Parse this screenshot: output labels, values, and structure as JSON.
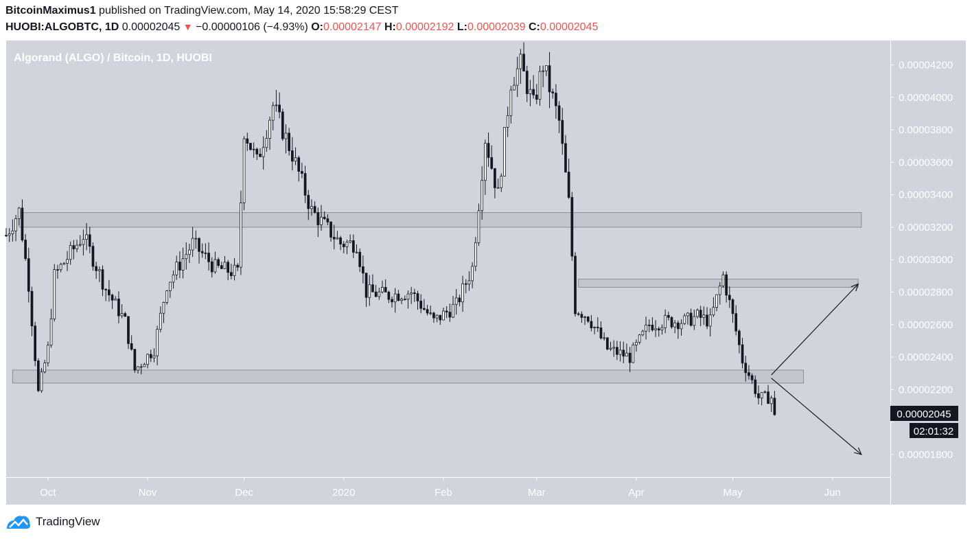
{
  "header": {
    "author": "BitcoinMaximus1",
    "published_text": "published on TradingView.com, May 14, 2020 15:58:29 CEST",
    "symbol": "HUOBI:ALGOBTC, 1D",
    "last_price": "0.00002045",
    "change_arrow": "▼",
    "change": "−0.00000106 (−4.93%)",
    "open_label": "O:",
    "open": "0.00002147",
    "high_label": "H:",
    "high": "0.00002192",
    "low_label": "L:",
    "low": "0.00002039",
    "close_label": "C:",
    "close": "0.00002045"
  },
  "footer": {
    "brand": "TradingView",
    "logo_icon": "tradingview-logo-icon"
  },
  "colors": {
    "plot_bg": "#d1d4dc",
    "candle_up": "#ffffff",
    "candle_down": "#131722",
    "zone_fill": "#c3c6ce",
    "label_bg": "#131722",
    "negative": "#ef5350"
  },
  "chart_data": {
    "type": "candlestick",
    "title": "Algorand (ALGO) / Bitcoin, 1D, HUOBI",
    "ylim": [
      1.66e-05,
      4.35e-05
    ],
    "y_tick_values": [
      1.8e-05,
      2e-05,
      2.2e-05,
      2.4e-05,
      2.6e-05,
      2.8e-05,
      3e-05,
      3.2e-05,
      3.4e-05,
      3.6e-05,
      3.8e-05,
      4e-05,
      4.2e-05
    ],
    "y_tick_labels": [
      "0.00001800",
      "",
      "0.00002200",
      "0.00002400",
      "0.00002600",
      "0.00002800",
      "0.00003000",
      "0.00003200",
      "0.00003400",
      "0.00003600",
      "0.00003800",
      "0.00004000",
      "0.00004200"
    ],
    "x_range": [
      "2019-09-18",
      "2020-06-19"
    ],
    "x_tick_dates": [
      "2019-10-01",
      "2019-11-01",
      "2019-12-01",
      "2020-01-01",
      "2020-02-01",
      "2020-03-01",
      "2020-04-01",
      "2020-05-01",
      "2020-06-01"
    ],
    "x_tick_labels": [
      "Oct",
      "Nov",
      "Dec",
      "2020",
      "Feb",
      "Mar",
      "Apr",
      "May",
      "Jun"
    ],
    "grid": false,
    "price_label": "0.00002045",
    "countdown": "02:01:32",
    "zones": [
      {
        "start": "2019-09-22",
        "end": "2020-06-10",
        "low": 3.2e-05,
        "high": 3.29e-05
      },
      {
        "start": "2020-03-14",
        "end": "2020-06-09",
        "low": 2.83e-05,
        "high": 2.88e-05
      },
      {
        "start": "2019-09-20",
        "end": "2020-05-23",
        "low": 2.24e-05,
        "high": 2.32e-05
      }
    ],
    "arrows": [
      {
        "from": [
          "2020-05-13",
          2.29e-05
        ],
        "to": [
          "2020-06-09",
          2.85e-05
        ]
      },
      {
        "from": [
          "2020-05-13",
          2.27e-05
        ],
        "to": [
          "2020-06-10",
          1.8e-05
        ]
      }
    ],
    "anchors": [
      {
        "date": "2019-09-18",
        "close": 3.15e-05
      },
      {
        "date": "2019-09-22",
        "close": 3.3e-05
      },
      {
        "date": "2019-09-25",
        "close": 2.85e-05
      },
      {
        "date": "2019-09-28",
        "close": 2.18e-05
      },
      {
        "date": "2019-10-01",
        "close": 2.45e-05
      },
      {
        "date": "2019-10-03",
        "close": 2.9e-05
      },
      {
        "date": "2019-10-12",
        "close": 3.15e-05
      },
      {
        "date": "2019-10-19",
        "close": 2.82e-05
      },
      {
        "date": "2019-10-25",
        "close": 2.62e-05
      },
      {
        "date": "2019-10-28",
        "close": 2.32e-05
      },
      {
        "date": "2019-11-03",
        "close": 2.45e-05
      },
      {
        "date": "2019-11-07",
        "close": 2.85e-05
      },
      {
        "date": "2019-11-15",
        "close": 3.1e-05
      },
      {
        "date": "2019-11-22",
        "close": 2.95e-05
      },
      {
        "date": "2019-11-29",
        "close": 2.92e-05
      },
      {
        "date": "2019-12-01",
        "close": 3.8e-05
      },
      {
        "date": "2019-12-05",
        "close": 3.6e-05
      },
      {
        "date": "2019-12-10",
        "close": 3.95e-05
      },
      {
        "date": "2019-12-16",
        "close": 3.65e-05
      },
      {
        "date": "2019-12-22",
        "close": 3.3e-05
      },
      {
        "date": "2019-12-31",
        "close": 3.1e-05
      },
      {
        "date": "2020-01-05",
        "close": 3.1e-05
      },
      {
        "date": "2020-01-08",
        "close": 2.8e-05
      },
      {
        "date": "2020-01-15",
        "close": 2.78e-05
      },
      {
        "date": "2020-01-22",
        "close": 2.8e-05
      },
      {
        "date": "2020-01-29",
        "close": 2.62e-05
      },
      {
        "date": "2020-02-05",
        "close": 2.72e-05
      },
      {
        "date": "2020-02-10",
        "close": 2.95e-05
      },
      {
        "date": "2020-02-14",
        "close": 3.75e-05
      },
      {
        "date": "2020-02-18",
        "close": 3.4e-05
      },
      {
        "date": "2020-02-22",
        "close": 4.1e-05
      },
      {
        "date": "2020-02-25",
        "close": 4.2e-05
      },
      {
        "date": "2020-02-29",
        "close": 3.95e-05
      },
      {
        "date": "2020-03-03",
        "close": 4.2e-05
      },
      {
        "date": "2020-03-08",
        "close": 3.85e-05
      },
      {
        "date": "2020-03-11",
        "close": 3.35e-05
      },
      {
        "date": "2020-03-13",
        "close": 2.7e-05
      },
      {
        "date": "2020-03-17",
        "close": 2.65e-05
      },
      {
        "date": "2020-03-23",
        "close": 2.45e-05
      },
      {
        "date": "2020-03-30",
        "close": 2.4e-05
      },
      {
        "date": "2020-04-05",
        "close": 2.6e-05
      },
      {
        "date": "2020-04-10",
        "close": 2.62e-05
      },
      {
        "date": "2020-04-16",
        "close": 2.62e-05
      },
      {
        "date": "2020-04-20",
        "close": 2.65e-05
      },
      {
        "date": "2020-04-24",
        "close": 2.62e-05
      },
      {
        "date": "2020-04-28",
        "close": 2.9e-05
      },
      {
        "date": "2020-05-01",
        "close": 2.65e-05
      },
      {
        "date": "2020-05-04",
        "close": 2.38e-05
      },
      {
        "date": "2020-05-07",
        "close": 2.25e-05
      },
      {
        "date": "2020-05-09",
        "close": 2.15e-05
      },
      {
        "date": "2020-05-13",
        "close": 2.15e-05
      },
      {
        "date": "2020-05-14",
        "close": 2.045e-05
      }
    ]
  }
}
